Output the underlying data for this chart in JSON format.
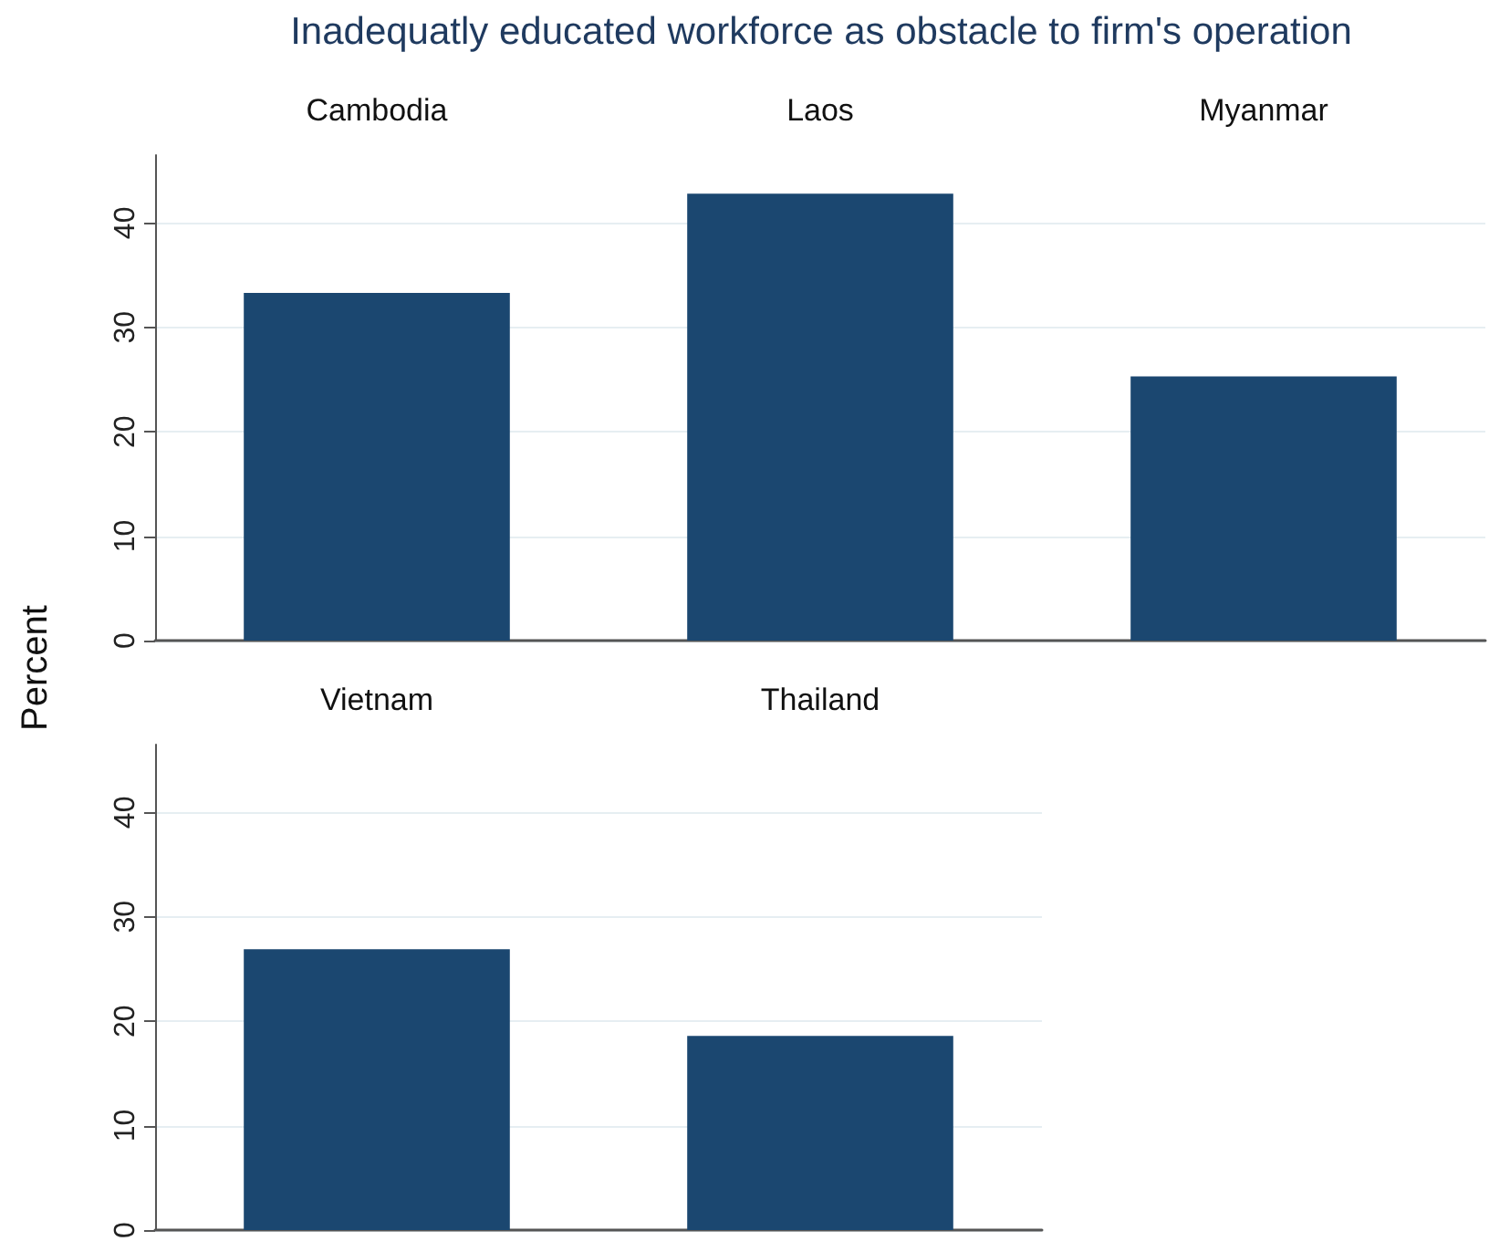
{
  "chart_data": [
    {
      "type": "bar",
      "annotations": [
        "Inadequatly educated workforce as obstacle to firm's operation"
      ],
      "ylabel": "Percent",
      "categories": [
        "Cambodia",
        "Laos",
        "Myanmar"
      ],
      "values": [
        33.3,
        42.8,
        25.3
      ],
      "color": "#1b4770",
      "ylim": [
        0,
        46.5
      ],
      "yticks": [
        0,
        10,
        20,
        30,
        40
      ],
      "grid": "y"
    },
    {
      "type": "bar",
      "categories": [
        "Vietnam",
        "Thailand"
      ],
      "values": [
        26.9,
        18.6
      ],
      "color": "#1b4770",
      "ylim": [
        0,
        46.5
      ],
      "yticks": [
        0,
        10,
        20,
        30,
        40
      ],
      "grid": "y"
    }
  ]
}
